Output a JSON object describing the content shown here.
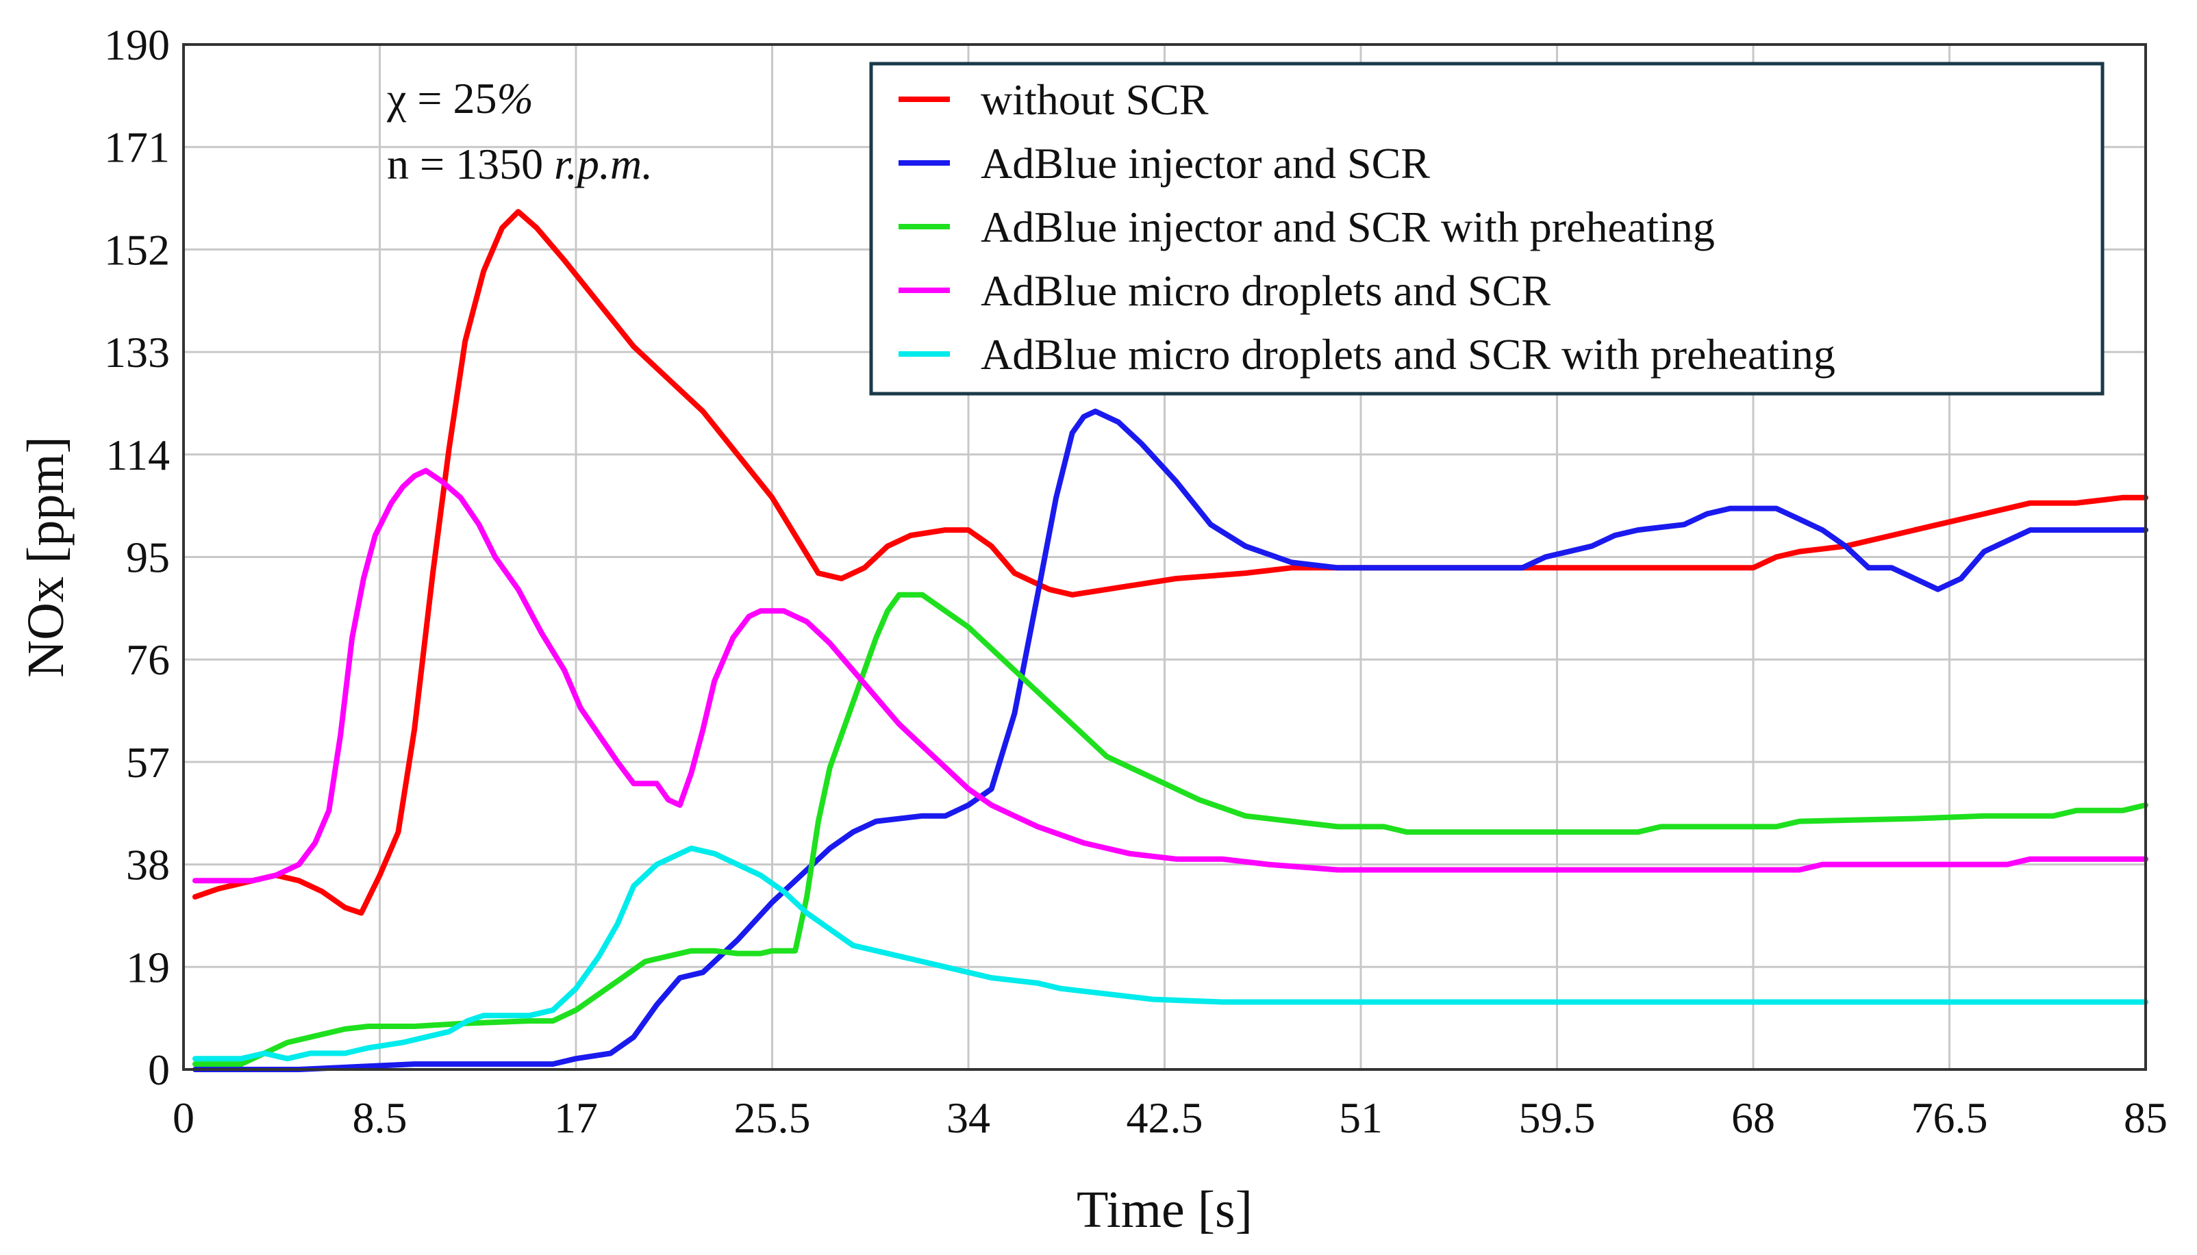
{
  "chart_data": {
    "type": "line",
    "title": "",
    "xlabel": "Time [s]",
    "ylabel": "NOx [ppm]",
    "xlim": [
      0,
      85
    ],
    "ylim": [
      0,
      190
    ],
    "grid": true,
    "legend_position": "top-right",
    "x_ticks": [
      "0",
      "8.5",
      "17",
      "25.5",
      "34",
      "42.5",
      "51",
      "59.5",
      "68",
      "76.5",
      "85"
    ],
    "y_ticks": [
      "0",
      "19",
      "38",
      "57",
      "76",
      "95",
      "114",
      "133",
      "152",
      "171",
      "190"
    ],
    "annotations": [
      {
        "parts": [
          {
            "text": "χ = 25",
            "italic": false
          },
          {
            "text": "%",
            "italic": true
          }
        ]
      },
      {
        "parts": [
          {
            "text": "n = 1350 ",
            "italic": false
          },
          {
            "text": "r.p.m.",
            "italic": true
          }
        ]
      }
    ],
    "series": [
      {
        "name": "without SCR",
        "color": "#ff0000",
        "points": [
          [
            0.5,
            32
          ],
          [
            1.5,
            33.5
          ],
          [
            3,
            35
          ],
          [
            4,
            36
          ],
          [
            5,
            35
          ],
          [
            6,
            33
          ],
          [
            7,
            30
          ],
          [
            7.7,
            29
          ],
          [
            8.5,
            36
          ],
          [
            9.3,
            44
          ],
          [
            10,
            63
          ],
          [
            10.8,
            92
          ],
          [
            11.5,
            115
          ],
          [
            12.2,
            135
          ],
          [
            13,
            148
          ],
          [
            13.8,
            156
          ],
          [
            14.5,
            159
          ],
          [
            15.3,
            156
          ],
          [
            16.5,
            150
          ],
          [
            18,
            142
          ],
          [
            19.5,
            134
          ],
          [
            21,
            128
          ],
          [
            22.5,
            122
          ],
          [
            24,
            114
          ],
          [
            25.5,
            106
          ],
          [
            26.5,
            99
          ],
          [
            27.5,
            92
          ],
          [
            28.5,
            91
          ],
          [
            29.5,
            93
          ],
          [
            30.5,
            97
          ],
          [
            31.5,
            99
          ],
          [
            33,
            100
          ],
          [
            34,
            100
          ],
          [
            35,
            97
          ],
          [
            36,
            92
          ],
          [
            37.5,
            89
          ],
          [
            38.5,
            88
          ],
          [
            40,
            89
          ],
          [
            41.5,
            90
          ],
          [
            43,
            91
          ],
          [
            44.5,
            91.5
          ],
          [
            46,
            92
          ],
          [
            48,
            93
          ],
          [
            52,
            93
          ],
          [
            60,
            93
          ],
          [
            68,
            93
          ],
          [
            69,
            95
          ],
          [
            70,
            96
          ],
          [
            72,
            97
          ],
          [
            74,
            99
          ],
          [
            76,
            101
          ],
          [
            78,
            103
          ],
          [
            80,
            105
          ],
          [
            82,
            105
          ],
          [
            84,
            106
          ],
          [
            85,
            106
          ]
        ]
      },
      {
        "name": "AdBlue injector and SCR",
        "color": "#1a1aee",
        "points": [
          [
            0.5,
            0
          ],
          [
            5,
            0
          ],
          [
            10,
            1
          ],
          [
            14,
            1
          ],
          [
            16,
            1
          ],
          [
            17,
            2
          ],
          [
            18.5,
            3
          ],
          [
            19.5,
            6
          ],
          [
            20.5,
            12
          ],
          [
            21.5,
            17
          ],
          [
            22.5,
            18
          ],
          [
            24,
            24
          ],
          [
            25.5,
            31
          ],
          [
            27,
            37
          ],
          [
            28,
            41
          ],
          [
            29,
            44
          ],
          [
            30,
            46
          ],
          [
            32,
            47
          ],
          [
            33,
            47
          ],
          [
            34,
            49
          ],
          [
            35,
            52
          ],
          [
            36,
            66
          ],
          [
            37,
            88
          ],
          [
            37.8,
            106
          ],
          [
            38.5,
            118
          ],
          [
            39,
            121
          ],
          [
            39.5,
            122
          ],
          [
            40.5,
            120
          ],
          [
            41.5,
            116
          ],
          [
            43,
            109
          ],
          [
            44.5,
            101
          ],
          [
            46,
            97
          ],
          [
            48,
            94
          ],
          [
            50,
            93
          ],
          [
            55,
            93
          ],
          [
            58,
            93
          ],
          [
            59,
            95
          ],
          [
            61,
            97
          ],
          [
            62,
            99
          ],
          [
            63,
            100
          ],
          [
            65,
            101
          ],
          [
            66,
            103
          ],
          [
            67,
            104
          ],
          [
            69,
            104
          ],
          [
            70,
            102
          ],
          [
            71,
            100
          ],
          [
            72,
            97
          ],
          [
            73,
            93
          ],
          [
            74,
            93
          ],
          [
            75,
            91
          ],
          [
            76,
            89
          ],
          [
            77,
            91
          ],
          [
            78,
            96
          ],
          [
            80,
            100
          ],
          [
            82,
            100
          ],
          [
            85,
            100
          ]
        ]
      },
      {
        "name": "AdBlue injector and SCR with preheating",
        "color": "#1ee01e",
        "points": [
          [
            0.5,
            1
          ],
          [
            2.5,
            1
          ],
          [
            3.5,
            3
          ],
          [
            4.5,
            5
          ],
          [
            5.5,
            6
          ],
          [
            7,
            7.5
          ],
          [
            8,
            8
          ],
          [
            10,
            8
          ],
          [
            12,
            8.5
          ],
          [
            15,
            9
          ],
          [
            16,
            9
          ],
          [
            17,
            11
          ],
          [
            18,
            14
          ],
          [
            19,
            17
          ],
          [
            20,
            20
          ],
          [
            21,
            21
          ],
          [
            22,
            22
          ],
          [
            23,
            22
          ],
          [
            24,
            21.5
          ],
          [
            25,
            21.5
          ],
          [
            25.5,
            22
          ],
          [
            26.5,
            22
          ],
          [
            27,
            32
          ],
          [
            27.5,
            46
          ],
          [
            28,
            56
          ],
          [
            29,
            68
          ],
          [
            30,
            80
          ],
          [
            30.5,
            85
          ],
          [
            31,
            88
          ],
          [
            32,
            88
          ],
          [
            33,
            85
          ],
          [
            34,
            82
          ],
          [
            35,
            78
          ],
          [
            36,
            74
          ],
          [
            37,
            70
          ],
          [
            38,
            66
          ],
          [
            39,
            62
          ],
          [
            40,
            58
          ],
          [
            41,
            56
          ],
          [
            42.5,
            53
          ],
          [
            44,
            50
          ],
          [
            46,
            47
          ],
          [
            47,
            46.5
          ],
          [
            48,
            46
          ],
          [
            50,
            45
          ],
          [
            52,
            45
          ],
          [
            53,
            44
          ],
          [
            55,
            44
          ],
          [
            60,
            44
          ],
          [
            63,
            44
          ],
          [
            64,
            45
          ],
          [
            66,
            45
          ],
          [
            69,
            45
          ],
          [
            70,
            46
          ],
          [
            75,
            46.5
          ],
          [
            78,
            47
          ],
          [
            81,
            47
          ],
          [
            82,
            48
          ],
          [
            84,
            48
          ],
          [
            85,
            49
          ]
        ]
      },
      {
        "name": "AdBlue micro droplets and SCR",
        "color": "#ff00ff",
        "points": [
          [
            0.5,
            35
          ],
          [
            3,
            35
          ],
          [
            4,
            36
          ],
          [
            5,
            38
          ],
          [
            5.7,
            42
          ],
          [
            6.3,
            48
          ],
          [
            6.8,
            62
          ],
          [
            7.3,
            80
          ],
          [
            7.8,
            91
          ],
          [
            8.3,
            99
          ],
          [
            9,
            105
          ],
          [
            9.5,
            108
          ],
          [
            10,
            110
          ],
          [
            10.5,
            111
          ],
          [
            11.2,
            109
          ],
          [
            12,
            106
          ],
          [
            12.8,
            101
          ],
          [
            13.5,
            95
          ],
          [
            14.5,
            89
          ],
          [
            15.5,
            81
          ],
          [
            16.5,
            74
          ],
          [
            17.2,
            67
          ],
          [
            18,
            62
          ],
          [
            18.8,
            57
          ],
          [
            19.5,
            53
          ],
          [
            20.5,
            53
          ],
          [
            21,
            50
          ],
          [
            21.5,
            49
          ],
          [
            22,
            55
          ],
          [
            22.5,
            63
          ],
          [
            23,
            72
          ],
          [
            23.8,
            80
          ],
          [
            24.5,
            84
          ],
          [
            25,
            85
          ],
          [
            26,
            85
          ],
          [
            27,
            83
          ],
          [
            28,
            79
          ],
          [
            29,
            74
          ],
          [
            30,
            69
          ],
          [
            31,
            64
          ],
          [
            32,
            60
          ],
          [
            33,
            56
          ],
          [
            34,
            52
          ],
          [
            35,
            49
          ],
          [
            36,
            47
          ],
          [
            37,
            45
          ],
          [
            38,
            43.5
          ],
          [
            39,
            42
          ],
          [
            40,
            41
          ],
          [
            41,
            40
          ],
          [
            43,
            39
          ],
          [
            45,
            39
          ],
          [
            47,
            38
          ],
          [
            50,
            37
          ],
          [
            55,
            37
          ],
          [
            65,
            37
          ],
          [
            70,
            37
          ],
          [
            71,
            38
          ],
          [
            75,
            38
          ],
          [
            79,
            38
          ],
          [
            80,
            39
          ],
          [
            85,
            39
          ]
        ]
      },
      {
        "name": "AdBlue micro droplets and SCR with preheating",
        "color": "#00ebeb",
        "points": [
          [
            0.5,
            2
          ],
          [
            2.5,
            2
          ],
          [
            3.5,
            3
          ],
          [
            4.5,
            2
          ],
          [
            5.5,
            3
          ],
          [
            7,
            3
          ],
          [
            8,
            4
          ],
          [
            9.5,
            5
          ],
          [
            10.5,
            6
          ],
          [
            11.5,
            7
          ],
          [
            12.3,
            9
          ],
          [
            13,
            10
          ],
          [
            14,
            10
          ],
          [
            15,
            10
          ],
          [
            16,
            11
          ],
          [
            17,
            15
          ],
          [
            18,
            21
          ],
          [
            18.8,
            27
          ],
          [
            19.5,
            34
          ],
          [
            20,
            36
          ],
          [
            20.5,
            38
          ],
          [
            21,
            39
          ],
          [
            21.5,
            40
          ],
          [
            22,
            41
          ],
          [
            23,
            40
          ],
          [
            24,
            38
          ],
          [
            25,
            36
          ],
          [
            26,
            33
          ],
          [
            27,
            29
          ],
          [
            28,
            26
          ],
          [
            29,
            23
          ],
          [
            30,
            22
          ],
          [
            31,
            21
          ],
          [
            32,
            20
          ],
          [
            33,
            19
          ],
          [
            34,
            18
          ],
          [
            35,
            17
          ],
          [
            37,
            16
          ],
          [
            38,
            15
          ],
          [
            40,
            14
          ],
          [
            42,
            13
          ],
          [
            45,
            12.5
          ],
          [
            50,
            12.5
          ],
          [
            60,
            12.5
          ],
          [
            70,
            12.5
          ],
          [
            80,
            12.5
          ],
          [
            85,
            12.5
          ]
        ]
      }
    ]
  }
}
